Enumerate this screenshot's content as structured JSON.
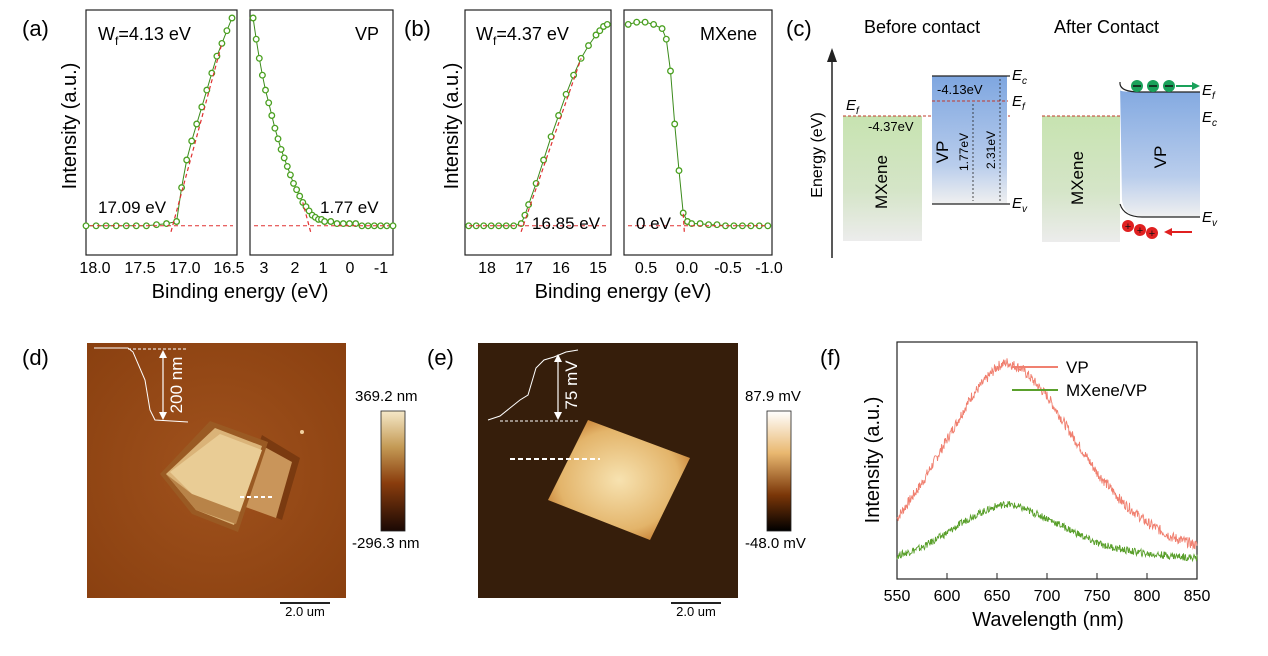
{
  "panels": {
    "a": {
      "label": "(a)",
      "ylabel": "Intensity (a.u.)",
      "xlabel": "Binding energy (eV)",
      "left": {
        "wf": "W",
        "wf_sub": "f",
        "wf_rest": "=4.13 eV",
        "cutoff": "17.09 eV",
        "ticks": [
          "18.0",
          "17.5",
          "17.0",
          "16.5"
        ]
      },
      "right": {
        "name": "VP",
        "cutoff": "1.77 eV",
        "ticks": [
          "3",
          "2",
          "1",
          "0",
          "-1"
        ]
      }
    },
    "b": {
      "label": "(b)",
      "ylabel": "Intensity (a.u.)",
      "xlabel": "Binding energy (eV)",
      "left": {
        "wf": "W",
        "wf_sub": "f",
        "wf_rest": "=4.37 eV",
        "cutoff": "16.85 eV",
        "ticks": [
          "18",
          "17",
          "16",
          "15"
        ]
      },
      "right": {
        "name": "MXene",
        "cutoff": "0 eV",
        "ticks": [
          "0.5",
          "0.0",
          "-0.5",
          "-1.0"
        ]
      }
    },
    "c": {
      "label": "(c)",
      "before": "Before contact",
      "after": "After Contact",
      "ylabel": "Energy (eV)",
      "mxene": "MXene",
      "vp": "VP",
      "mxene_level": "-4.37eV",
      "vp_level": "-4.13eV",
      "gap1": "1.77eV",
      "gap2": "2.31eV",
      "Ec": "E",
      "Ec_sub": "c",
      "Ef": "E",
      "Ef_sub": "f",
      "Ev": "E",
      "Ev_sub": "v"
    },
    "d": {
      "label": "(d)",
      "height": "200 nm",
      "scale_max": "369.2 nm",
      "scale_min": "-296.3 nm",
      "scalebar": "2.0 um"
    },
    "e": {
      "label": "(e)",
      "height": "75 mV",
      "scale_max": "87.9 mV",
      "scale_min": "-48.0 mV",
      "scalebar": "2.0 um"
    },
    "f": {
      "label": "(f)",
      "ylabel": "Intensity (a.u.)",
      "xlabel": "Wavelength (nm)"
    }
  },
  "chart_data": [
    {
      "type": "scatter",
      "panel": "a-left",
      "xlabel": "",
      "ylabel": "Intensity (a.u.)",
      "xlim": [
        18.0,
        16.5
      ],
      "reversed_x": true,
      "series": [
        {
          "values_x": [
            18.0,
            17.9,
            17.8,
            17.7,
            17.6,
            17.5,
            17.4,
            17.3,
            17.2,
            17.1,
            17.05,
            17.0,
            16.95,
            16.9,
            16.85,
            16.8,
            16.75,
            16.7,
            16.65,
            16.6,
            16.55
          ],
          "values_y": [
            0.02,
            0.02,
            0.02,
            0.02,
            0.02,
            0.02,
            0.02,
            0.025,
            0.03,
            0.04,
            0.2,
            0.33,
            0.42,
            0.5,
            0.58,
            0.66,
            0.74,
            0.82,
            0.88,
            0.94,
            1.0
          ]
        }
      ]
    },
    {
      "type": "scatter",
      "panel": "a-right",
      "xlabel": "",
      "ylabel": "",
      "xlim": [
        3.2,
        -1.4
      ],
      "reversed_x": true,
      "series": [
        {
          "name": "VP",
          "values_x": [
            3.1,
            3.0,
            2.9,
            2.8,
            2.7,
            2.6,
            2.5,
            2.4,
            2.3,
            2.2,
            2.1,
            2.0,
            1.9,
            1.8,
            1.7,
            1.6,
            1.5,
            1.4,
            1.3,
            1.2,
            1.1,
            1.0,
            0.9,
            0.8,
            0.6,
            0.4,
            0.2,
            0.0,
            -0.2,
            -0.4,
            -0.6,
            -0.8,
            -1.0,
            -1.2,
            -1.4
          ],
          "values_y": [
            1.0,
            0.9,
            0.81,
            0.73,
            0.66,
            0.6,
            0.54,
            0.48,
            0.43,
            0.38,
            0.34,
            0.3,
            0.26,
            0.22,
            0.19,
            0.16,
            0.13,
            0.11,
            0.09,
            0.07,
            0.06,
            0.05,
            0.05,
            0.04,
            0.04,
            0.03,
            0.03,
            0.03,
            0.03,
            0.02,
            0.02,
            0.02,
            0.02,
            0.02,
            0.02
          ]
        }
      ]
    },
    {
      "type": "scatter",
      "panel": "b-left",
      "xlabel": "",
      "ylabel": "Intensity (a.u.)",
      "xlim": [
        18.5,
        14.6
      ],
      "reversed_x": true,
      "series": [
        {
          "values_x": [
            18.4,
            18.2,
            18.0,
            17.8,
            17.6,
            17.4,
            17.2,
            17.0,
            16.9,
            16.8,
            16.6,
            16.4,
            16.2,
            16.0,
            15.8,
            15.6,
            15.4,
            15.2,
            15.0,
            14.9,
            14.8,
            14.7
          ],
          "values_y": [
            0.02,
            0.02,
            0.02,
            0.02,
            0.02,
            0.02,
            0.02,
            0.03,
            0.07,
            0.12,
            0.22,
            0.33,
            0.44,
            0.54,
            0.64,
            0.73,
            0.81,
            0.87,
            0.92,
            0.94,
            0.96,
            0.97
          ]
        }
      ]
    },
    {
      "type": "scatter",
      "panel": "b-right",
      "xlabel": "",
      "ylabel": "",
      "xlim": [
        0.7,
        -1.05
      ],
      "reversed_x": true,
      "series": [
        {
          "name": "MXene",
          "values_x": [
            0.65,
            0.55,
            0.45,
            0.35,
            0.25,
            0.2,
            0.15,
            0.1,
            0.05,
            0.0,
            -0.05,
            -0.1,
            -0.2,
            -0.3,
            -0.4,
            -0.5,
            -0.6,
            -0.7,
            -0.8,
            -0.9,
            -1.0
          ],
          "values_y": [
            0.97,
            0.98,
            0.98,
            0.97,
            0.95,
            0.9,
            0.75,
            0.5,
            0.28,
            0.08,
            0.04,
            0.03,
            0.03,
            0.025,
            0.025,
            0.02,
            0.02,
            0.02,
            0.02,
            0.02,
            0.02
          ]
        }
      ]
    },
    {
      "type": "line",
      "panel": "f",
      "xlabel": "Wavelength (nm)",
      "ylabel": "Intensity (a.u.)",
      "xlim": [
        550,
        850
      ],
      "x": [
        550,
        575,
        600,
        625,
        650,
        660,
        675,
        700,
        725,
        750,
        775,
        800,
        825,
        850
      ],
      "series": [
        {
          "name": "VP",
          "color": "#f08070",
          "values": [
            0.2,
            0.37,
            0.58,
            0.79,
            0.93,
            0.95,
            0.92,
            0.79,
            0.6,
            0.42,
            0.28,
            0.18,
            0.11,
            0.07
          ]
        },
        {
          "name": "MXene/VP",
          "color": "#5aa02c",
          "values": [
            0.02,
            0.06,
            0.13,
            0.21,
            0.26,
            0.27,
            0.25,
            0.2,
            0.14,
            0.08,
            0.05,
            0.03,
            0.02,
            0.01
          ]
        }
      ],
      "ticks": [
        "550",
        "600",
        "650",
        "700",
        "750",
        "800",
        "850"
      ]
    }
  ]
}
